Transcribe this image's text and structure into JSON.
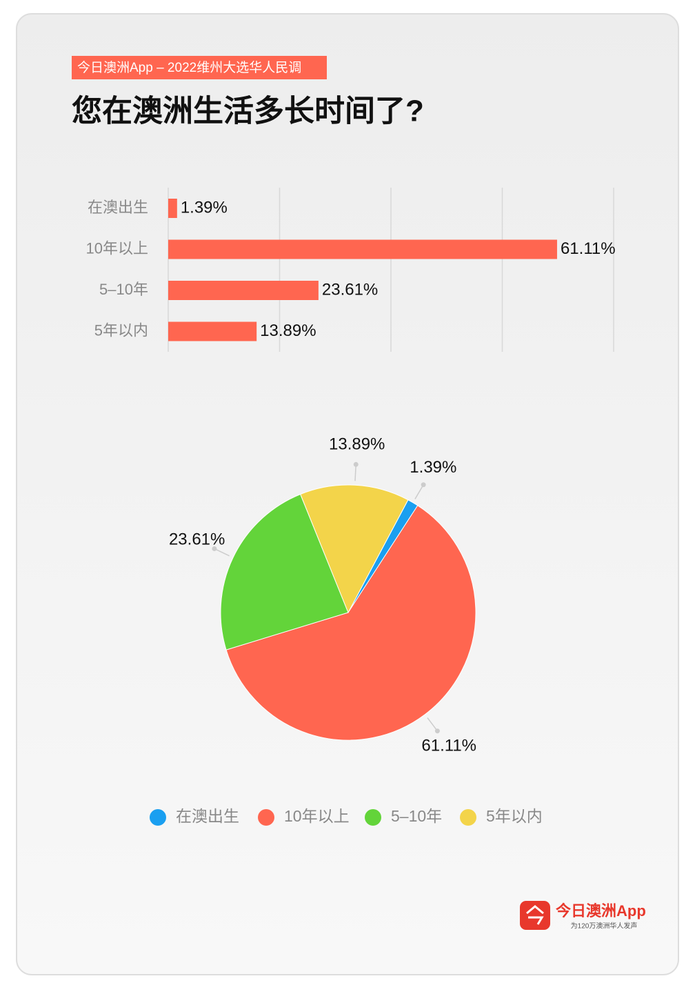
{
  "header": {
    "tag": "今日澳洲App – 2022维州大选华人民调",
    "title": "您在澳洲生活多长时间了?"
  },
  "chart_data": [
    {
      "type": "bar",
      "orientation": "horizontal",
      "categories": [
        "在澳出生",
        "10年以上",
        "5–10年",
        "5年以内"
      ],
      "values": [
        1.39,
        61.11,
        23.61,
        13.89
      ],
      "value_labels": [
        "1.39%",
        "61.11%",
        "23.61%",
        "13.89%"
      ],
      "color": "#ff6650",
      "xlim": [
        0,
        70
      ],
      "xticks": [
        0,
        17.5,
        35,
        52.5,
        70
      ],
      "grid": true
    },
    {
      "type": "pie",
      "categories": [
        "在澳出生",
        "10年以上",
        "5–10年",
        "5年以内"
      ],
      "values": [
        1.39,
        61.11,
        23.61,
        13.89
      ],
      "value_labels": [
        "1.39%",
        "61.11%",
        "23.61%",
        "13.89%"
      ],
      "colors": [
        "#1a9ff0",
        "#ff6650",
        "#63d43a",
        "#f3d44a"
      ],
      "legend": "bottom"
    }
  ],
  "footer": {
    "logo": "今日澳洲App",
    "slogan": "为120万澳洲华人发声"
  }
}
